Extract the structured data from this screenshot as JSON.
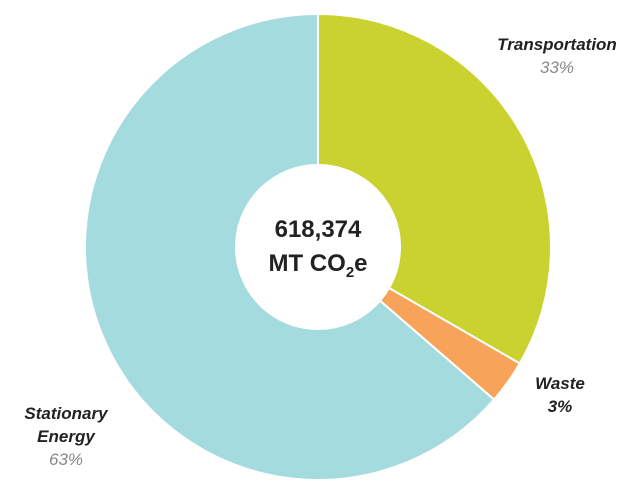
{
  "chart_data": {
    "type": "donut",
    "categories": [
      "Transportation",
      "Waste",
      "Stationary Energy"
    ],
    "values": [
      33,
      3,
      63
    ],
    "value_labels": [
      "33%",
      "3%",
      "63%"
    ],
    "colors": [
      "#c9d22e",
      "#f7a35a",
      "#a4dbde"
    ],
    "center_label": {
      "value": "618,374",
      "unit": [
        "MT CO",
        "2",
        "e"
      ]
    }
  }
}
